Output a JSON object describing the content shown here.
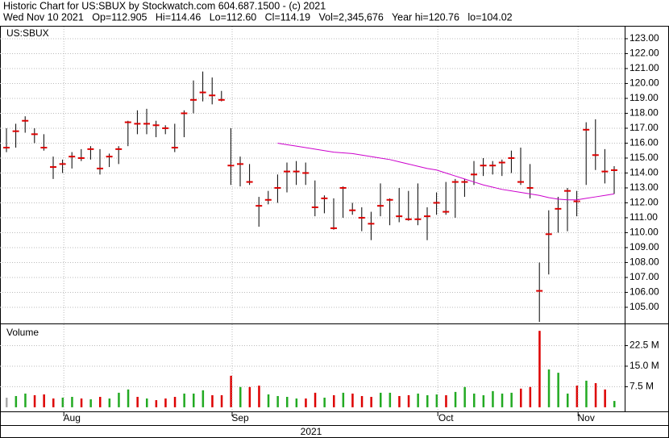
{
  "header": {
    "line1": "Historic Chart for US:SBUX by Stockwatch.com 604.687.1500 - (c) 2021",
    "line2": "Wed Nov 10 2021   Op=112.905   Hi=114.46   Lo=112.60   Cl=114.19   Vol=2,345,676   Year hi=120.76   lo=104.02"
  },
  "chart_data": [
    {
      "type": "hlc",
      "title": "US:SBUX",
      "bar_color": "#000000",
      "close_color": "#dd0000",
      "ma_color": "#cc00cc",
      "grid": true,
      "high": [
        117.0,
        117.3,
        117.8,
        117.0,
        116.6,
        115.1,
        114.9,
        115.4,
        115.6,
        115.8,
        115.6,
        115.3,
        115.8,
        117.5,
        118.2,
        118.3,
        117.5,
        117.2,
        117.3,
        118.2,
        120.2,
        120.8,
        120.4,
        119.5,
        117.0,
        115.1,
        114.6,
        112.4,
        112.8,
        113.9,
        114.7,
        114.8,
        114.7,
        113.5,
        112.5,
        112.3,
        113.1,
        112.0,
        111.7,
        111.4,
        113.3,
        112.3,
        113.0,
        112.8,
        113.3,
        111.7,
        112.7,
        113.4,
        113.6,
        113.6,
        114.8,
        115.0,
        114.8,
        114.9,
        115.5,
        115.7,
        114.6,
        108.0,
        111.5,
        112.4,
        113.0,
        112.8,
        117.4,
        117.6,
        115.6,
        114.46
      ],
      "low": [
        115.4,
        115.7,
        116.7,
        116.0,
        115.5,
        113.6,
        114.0,
        114.3,
        114.8,
        114.9,
        113.9,
        114.4,
        114.6,
        115.8,
        116.6,
        116.6,
        116.4,
        116.6,
        115.4,
        116.4,
        118.0,
        118.8,
        118.6,
        118.8,
        113.2,
        113.1,
        113.2,
        110.4,
        111.9,
        112.0,
        112.7,
        113.2,
        113.2,
        111.1,
        111.3,
        110.2,
        111.0,
        111.2,
        110.1,
        109.5,
        111.1,
        110.5,
        110.7,
        110.8,
        110.5,
        109.5,
        111.2,
        111.2,
        111.0,
        112.4,
        113.2,
        113.8,
        113.9,
        113.8,
        114.0,
        113.2,
        112.3,
        104.02,
        107.2,
        110.0,
        110.1,
        111.1,
        113.2,
        114.2,
        113.3,
        112.6
      ],
      "close": [
        115.7,
        116.8,
        117.5,
        116.6,
        115.7,
        114.4,
        114.6,
        115.1,
        115.0,
        115.6,
        114.3,
        115.1,
        115.6,
        117.4,
        117.3,
        117.3,
        117.2,
        117.0,
        115.7,
        118.0,
        118.9,
        119.4,
        119.2,
        118.9,
        114.5,
        114.6,
        113.4,
        111.8,
        112.2,
        113.0,
        114.1,
        114.1,
        114.0,
        111.7,
        112.3,
        110.3,
        113.0,
        111.5,
        111.0,
        110.6,
        111.8,
        112.2,
        111.1,
        110.9,
        110.9,
        111.1,
        112.0,
        111.4,
        113.4,
        113.4,
        113.9,
        114.5,
        114.5,
        114.7,
        115.0,
        113.4,
        113.0,
        106.1,
        109.9,
        111.6,
        112.8,
        112.1,
        116.9,
        115.2,
        114.1,
        114.19
      ],
      "ma": [
        null,
        null,
        null,
        null,
        null,
        null,
        null,
        null,
        null,
        null,
        null,
        null,
        null,
        null,
        null,
        null,
        null,
        null,
        null,
        null,
        null,
        null,
        null,
        null,
        null,
        null,
        null,
        null,
        null,
        116.0,
        115.9,
        115.8,
        115.7,
        115.6,
        115.5,
        115.4,
        115.35,
        115.3,
        115.2,
        115.1,
        115.0,
        114.9,
        114.75,
        114.6,
        114.45,
        114.3,
        114.2,
        114.0,
        113.8,
        113.6,
        113.4,
        113.2,
        113.05,
        112.9,
        112.8,
        112.7,
        112.6,
        112.5,
        112.35,
        112.25,
        112.2,
        112.2,
        112.3,
        112.4,
        112.5,
        112.6
      ],
      "ylim": [
        103.97,
        123.81
      ],
      "yticks": [
        {
          "value": 105,
          "label": "105.00"
        },
        {
          "value": 106,
          "label": "106.00"
        },
        {
          "value": 107,
          "label": "107.00"
        },
        {
          "value": 108,
          "label": "108.00"
        },
        {
          "value": 109,
          "label": "109.00"
        },
        {
          "value": 110,
          "label": "110.00"
        },
        {
          "value": 111,
          "label": "111.00"
        },
        {
          "value": 112,
          "label": "112.00"
        },
        {
          "value": 113,
          "label": "113.00"
        },
        {
          "value": 114,
          "label": "114.00"
        },
        {
          "value": 115,
          "label": "115.00"
        },
        {
          "value": 116,
          "label": "116.00"
        },
        {
          "value": 117,
          "label": "117.00"
        },
        {
          "value": 118,
          "label": "118.00"
        },
        {
          "value": 119,
          "label": "119.00"
        },
        {
          "value": 120,
          "label": "120.00"
        },
        {
          "value": 121,
          "label": "121.00"
        },
        {
          "value": 122,
          "label": "122.00"
        },
        {
          "value": 123,
          "label": "123.00"
        }
      ]
    },
    {
      "type": "volume",
      "title": "Volume",
      "up_color": "#22aa22",
      "down_color": "#dd0000",
      "first_color": "#aaaaaa",
      "grid": true,
      "categories": [
        null,
        null,
        null,
        null,
        null,
        null,
        null,
        "Aug",
        null,
        null,
        null,
        null,
        null,
        null,
        null,
        null,
        null,
        null,
        null,
        null,
        null,
        null,
        null,
        null,
        null,
        "Sep",
        null,
        null,
        null,
        null,
        null,
        null,
        null,
        null,
        null,
        null,
        null,
        null,
        null,
        null,
        null,
        null,
        null,
        null,
        null,
        null,
        null,
        "Oct",
        null,
        null,
        null,
        null,
        null,
        null,
        null,
        null,
        null,
        null,
        null,
        null,
        null,
        null,
        "Nov",
        null,
        null,
        null
      ],
      "x_group_label": "2021",
      "values": [
        3.5,
        4.1,
        5.0,
        4.4,
        4.7,
        3.2,
        3.5,
        3.8,
        3.2,
        2.9,
        3.8,
        3.2,
        5.3,
        6.5,
        3.8,
        3.2,
        2.6,
        3.2,
        3.8,
        5.0,
        5.0,
        6.2,
        4.4,
        4.4,
        11.5,
        7.4,
        7.4,
        7.9,
        4.7,
        4.1,
        3.8,
        3.2,
        3.2,
        5.3,
        3.5,
        4.4,
        5.3,
        5.0,
        4.1,
        3.8,
        5.3,
        5.3,
        4.1,
        4.4,
        5.0,
        4.4,
        4.7,
        4.4,
        5.6,
        7.4,
        5.0,
        4.4,
        5.9,
        5.0,
        5.3,
        6.8,
        7.4,
        27.9,
        13.8,
        12.6,
        5.0,
        7.9,
        9.7,
        8.8,
        6.5,
        2.3
      ],
      "ylim": [
        -1.5,
        30.3
      ],
      "yticks": [
        {
          "value": 7.5,
          "label": "7.5 M"
        },
        {
          "value": 15,
          "label": "15.0 M"
        },
        {
          "value": 22.5,
          "label": "22.5 M"
        }
      ]
    }
  ]
}
